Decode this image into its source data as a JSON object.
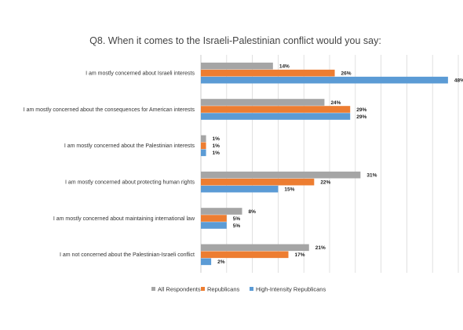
{
  "chart_data": {
    "type": "bar",
    "orientation": "horizontal",
    "title": "Q8. When it comes to the Israeli-Palestinian conflict would you say:",
    "categories": [
      "I am mostly concerned about Israeli interests",
      "I am mostly concerned about the consequences for American interests",
      "I am mostly concerned about the Palestinian interests",
      "I am mostly concerned about protecting human rights",
      "I am mostly concerned about  maintaining international law",
      "I am not concerned about the Palestinian-Israeli conflict"
    ],
    "series": [
      {
        "name": "All Respondents",
        "color": "#a5a5a5",
        "values": [
          14,
          24,
          1,
          31,
          8,
          21
        ],
        "labels": [
          "14%",
          "24%",
          "1%",
          "31%",
          "8%",
          "21%"
        ]
      },
      {
        "name": "Republicans",
        "color": "#ed7d31",
        "values": [
          26,
          29,
          1,
          22,
          5,
          17
        ],
        "labels": [
          "26%",
          "29%",
          "1%",
          "22%",
          "5%",
          "17%"
        ]
      },
      {
        "name": "High-Intensity Republicans",
        "color": "#5b9bd5",
        "values": [
          48,
          29,
          1,
          15,
          5,
          2
        ],
        "labels": [
          "48%",
          "29%",
          "1%",
          "15%",
          "5%",
          "2%"
        ]
      }
    ],
    "xlim": [
      0,
      50
    ],
    "grid": true,
    "legend_position": "bottom"
  }
}
